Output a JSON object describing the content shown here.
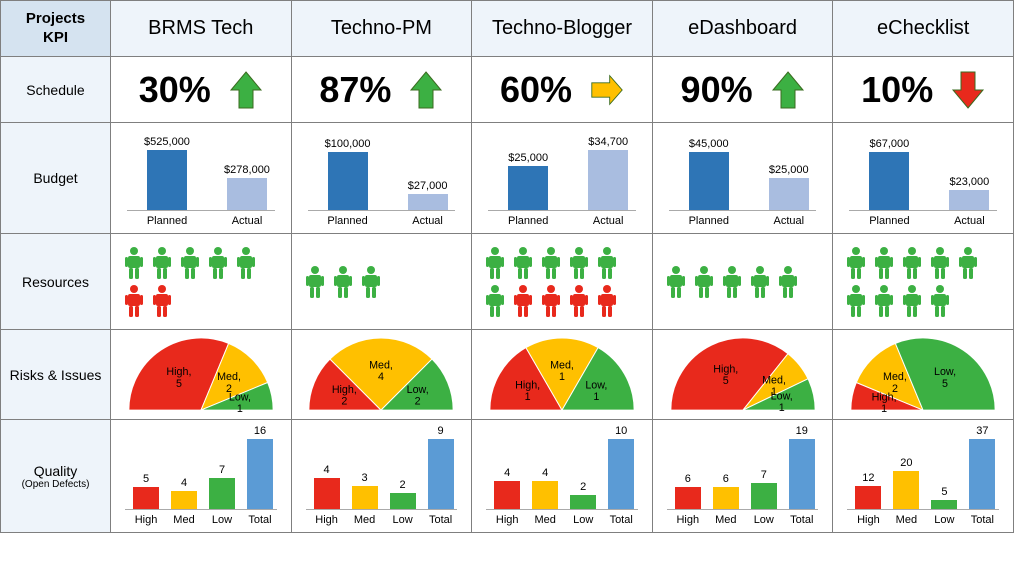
{
  "header": {
    "corner_line1": "Projects",
    "corner_line2": "KPI"
  },
  "row_labels": {
    "schedule": "Schedule",
    "budget": "Budget",
    "resources": "Resources",
    "risks": "Risks & Issues",
    "quality": "Quality",
    "quality_sub": "(Open Defects)"
  },
  "colors": {
    "green": "#3cb043",
    "red": "#e8291c",
    "yellow": "#ffc000",
    "budget_planned": "#2e75b6",
    "budget_actual": "#a9bde0",
    "q_high": "#e8291c",
    "q_med": "#ffc000",
    "q_low": "#3cb043",
    "q_total": "#5b9bd5",
    "gauge_red": "#e8291c",
    "gauge_yel": "#ffc000",
    "gauge_grn": "#3cb043"
  },
  "projects": [
    {
      "name": "BRMS Tech",
      "schedule": {
        "pct": "30%",
        "arrow": "up",
        "arrow_color": "#3cb043"
      },
      "budget": {
        "planned_label": "$525,000",
        "actual_label": "$278,000",
        "planned_h": 60,
        "actual_h": 32,
        "cat_planned": "Planned",
        "cat_actual": "Actual"
      },
      "resources": {
        "row1": [
          "g",
          "g",
          "g",
          "g",
          "g"
        ],
        "row2": [
          "r",
          "r"
        ]
      },
      "risks": {
        "slices": [
          {
            "label": "High, 5",
            "val": 5,
            "c": "#e8291c"
          },
          {
            "label": "Med, 2",
            "val": 2,
            "c": "#ffc000"
          },
          {
            "label": "Low, 1",
            "val": 1,
            "c": "#3cb043"
          }
        ]
      },
      "quality": {
        "labels": [
          "High",
          "Med",
          "Low",
          "Total"
        ],
        "vals": [
          5,
          4,
          7,
          16
        ],
        "colors": [
          "#e8291c",
          "#ffc000",
          "#3cb043",
          "#5b9bd5"
        ],
        "max": 16
      }
    },
    {
      "name": "Techno-PM",
      "schedule": {
        "pct": "87%",
        "arrow": "up",
        "arrow_color": "#3cb043"
      },
      "budget": {
        "planned_label": "$100,000",
        "actual_label": "$27,000",
        "planned_h": 58,
        "actual_h": 16,
        "cat_planned": "Planned",
        "cat_actual": "Actual"
      },
      "resources": {
        "row1": [
          "g",
          "g",
          "g"
        ],
        "row2": []
      },
      "risks": {
        "slices": [
          {
            "label": "High, 2",
            "val": 2,
            "c": "#e8291c"
          },
          {
            "label": "Med, 4",
            "val": 4,
            "c": "#ffc000"
          },
          {
            "label": "Low, 2",
            "val": 2,
            "c": "#3cb043"
          }
        ]
      },
      "quality": {
        "labels": [
          "High",
          "Med",
          "Low",
          "Total"
        ],
        "vals": [
          4,
          3,
          2,
          9
        ],
        "colors": [
          "#e8291c",
          "#ffc000",
          "#3cb043",
          "#5b9bd5"
        ],
        "max": 9
      }
    },
    {
      "name": "Techno-Blogger",
      "schedule": {
        "pct": "60%",
        "arrow": "right",
        "arrow_color": "#ffc000"
      },
      "budget": {
        "planned_label": "$25,000",
        "actual_label": "$34,700",
        "planned_h": 44,
        "actual_h": 60,
        "cat_planned": "Planned",
        "cat_actual": "Actual"
      },
      "resources": {
        "row1": [
          "g",
          "g",
          "g",
          "g",
          "g"
        ],
        "row2": [
          "g",
          "r",
          "r",
          "r",
          "r"
        ]
      },
      "risks": {
        "slices": [
          {
            "label": "High, 1",
            "val": 1,
            "c": "#e8291c"
          },
          {
            "label": "Med, 1",
            "val": 1,
            "c": "#ffc000"
          },
          {
            "label": "Low, 1",
            "val": 1,
            "c": "#3cb043"
          }
        ]
      },
      "quality": {
        "labels": [
          "High",
          "Med",
          "Low",
          "Total"
        ],
        "vals": [
          4,
          4,
          2,
          10
        ],
        "colors": [
          "#e8291c",
          "#ffc000",
          "#3cb043",
          "#5b9bd5"
        ],
        "max": 10
      }
    },
    {
      "name": "eDashboard",
      "schedule": {
        "pct": "90%",
        "arrow": "up",
        "arrow_color": "#3cb043"
      },
      "budget": {
        "planned_label": "$45,000",
        "actual_label": "$25,000",
        "planned_h": 58,
        "actual_h": 32,
        "cat_planned": "Planned",
        "cat_actual": "Actual"
      },
      "resources": {
        "row1": [
          "g",
          "g",
          "g",
          "g",
          "g"
        ],
        "row2": []
      },
      "risks": {
        "slices": [
          {
            "label": "High, 5",
            "val": 5,
            "c": "#e8291c"
          },
          {
            "label": "Med, 1",
            "val": 1,
            "c": "#ffc000"
          },
          {
            "label": "Low, 1",
            "val": 1,
            "c": "#3cb043"
          }
        ]
      },
      "quality": {
        "labels": [
          "High",
          "Med",
          "Low",
          "Total"
        ],
        "vals": [
          6,
          6,
          7,
          19
        ],
        "colors": [
          "#e8291c",
          "#ffc000",
          "#3cb043",
          "#5b9bd5"
        ],
        "max": 19
      }
    },
    {
      "name": "eChecklist",
      "schedule": {
        "pct": "10%",
        "arrow": "down",
        "arrow_color": "#e8291c"
      },
      "budget": {
        "planned_label": "$67,000",
        "actual_label": "$23,000",
        "planned_h": 58,
        "actual_h": 20,
        "cat_planned": "Planned",
        "cat_actual": "Actual"
      },
      "resources": {
        "row1": [
          "g",
          "g",
          "g",
          "g",
          "g"
        ],
        "row2": [
          "g",
          "g",
          "g",
          "g"
        ]
      },
      "risks": {
        "slices": [
          {
            "label": "High, 1",
            "val": 1,
            "c": "#e8291c"
          },
          {
            "label": "Med, 2",
            "val": 2,
            "c": "#ffc000"
          },
          {
            "label": "Low, 5",
            "val": 5,
            "c": "#3cb043"
          }
        ]
      },
      "quality": {
        "labels": [
          "High",
          "Med",
          "Low",
          "Total"
        ],
        "vals": [
          12,
          20,
          5,
          37
        ],
        "colors": [
          "#e8291c",
          "#ffc000",
          "#3cb043",
          "#5b9bd5"
        ],
        "max": 37
      }
    }
  ]
}
